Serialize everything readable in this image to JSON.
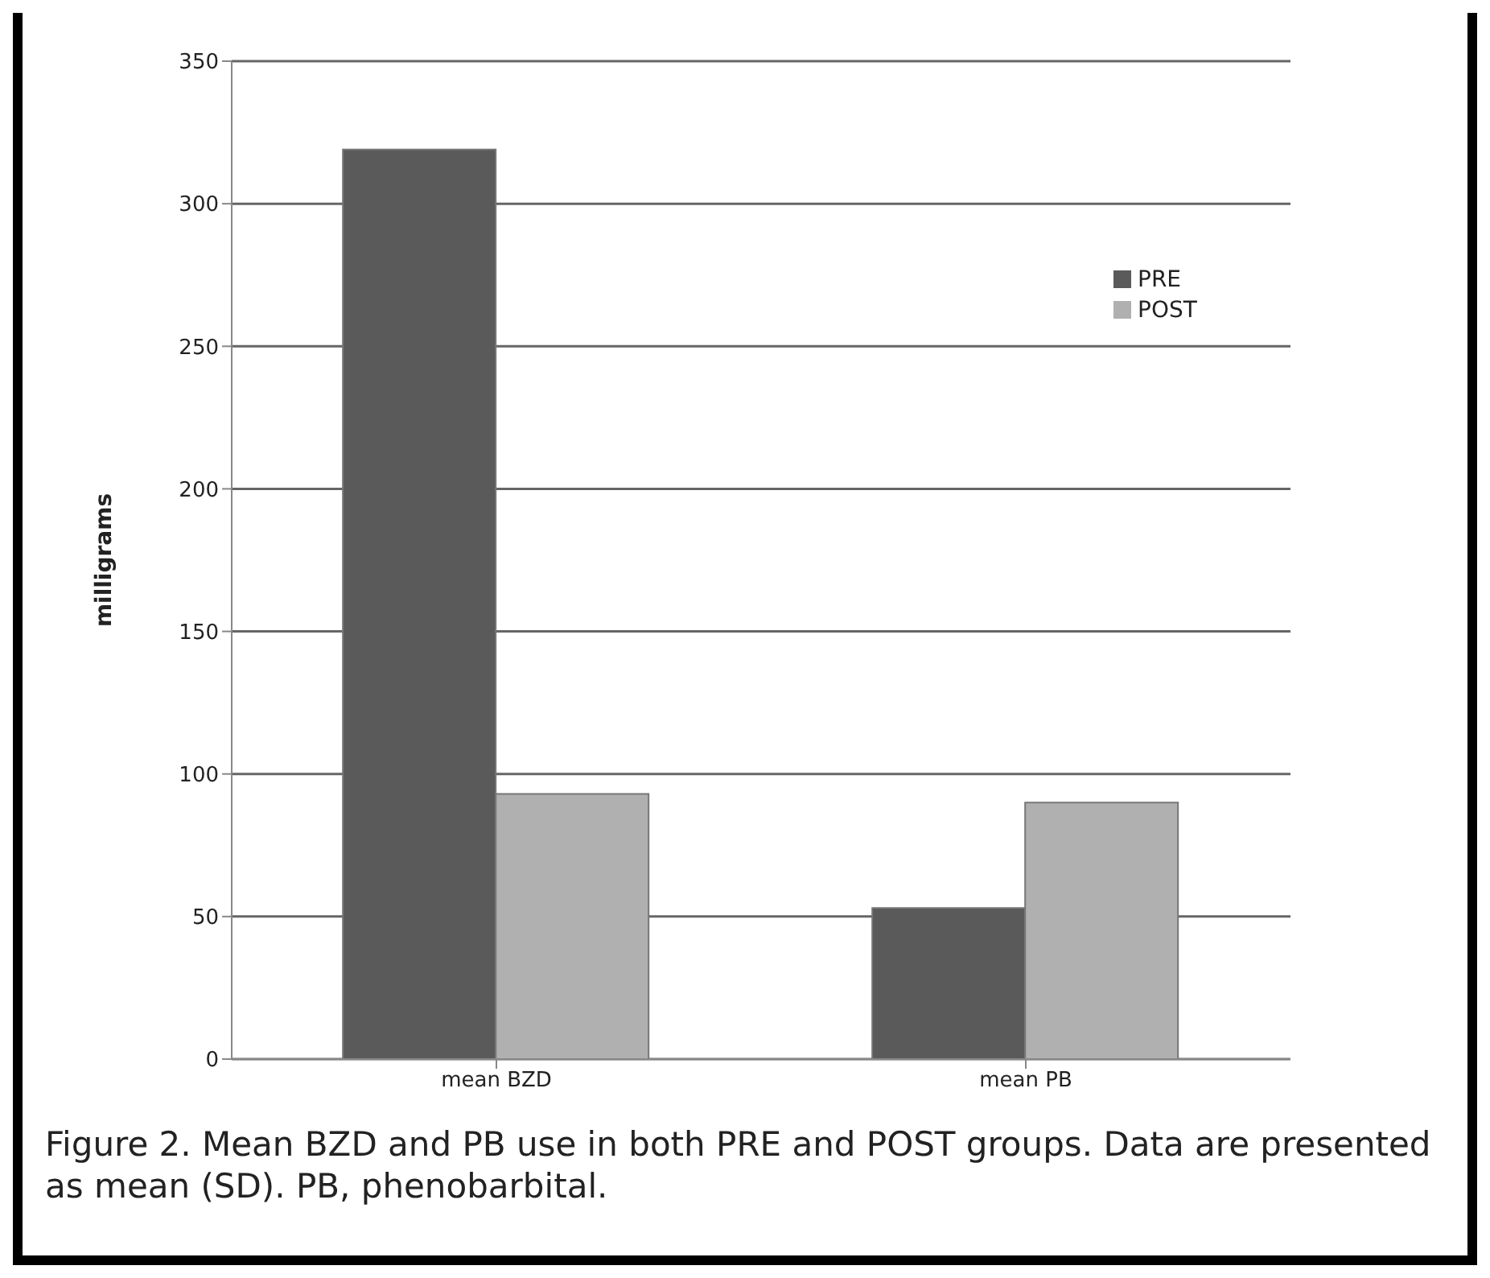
{
  "chart_data": {
    "type": "bar",
    "ylabel": "milligrams",
    "categories": [
      "mean BZD",
      "mean PB"
    ],
    "series": [
      {
        "name": "PRE",
        "color": "#5a5a5a",
        "values": [
          319,
          53
        ]
      },
      {
        "name": "POST",
        "color": "#b0b0b0",
        "values": [
          93,
          90
        ]
      }
    ],
    "ylim": [
      0,
      350
    ],
    "yticks": [
      0,
      50,
      100,
      150,
      200,
      250,
      300,
      350
    ],
    "grid": "y",
    "legend": "top right",
    "annotations": [
      "Figure 2.  Mean BZD and PB use in both PRE and POST groups. Data are presented as mean (SD). PB, phenobarbital."
    ]
  }
}
